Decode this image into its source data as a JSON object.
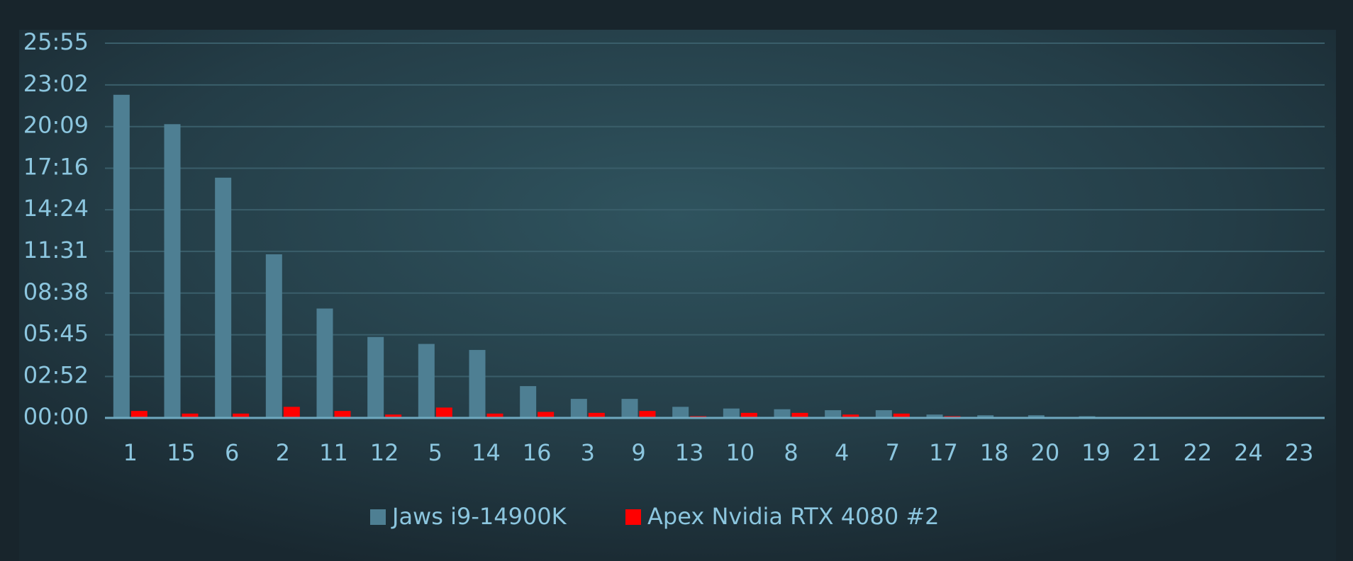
{
  "chart_data": {
    "type": "bar",
    "categories": [
      "1",
      "15",
      "6",
      "2",
      "11",
      "12",
      "5",
      "14",
      "16",
      "3",
      "9",
      "13",
      "10",
      "8",
      "4",
      "7",
      "17",
      "18",
      "20",
      "19",
      "21",
      "22",
      "24",
      "23"
    ],
    "series": [
      {
        "name": "Jaws i9-14900K",
        "color": "#4e7f93",
        "values": [
          1341,
          1219,
          997,
          679,
          454,
          336,
          307,
          282,
          132,
          79,
          79,
          46,
          39,
          36,
          32,
          32,
          14,
          11,
          11,
          7,
          4,
          4,
          4,
          4
        ]
      },
      {
        "name": "Apex Nvidia RTX 4080 #2",
        "color": "#ff0000",
        "values": [
          29,
          18,
          18,
          46,
          29,
          14,
          43,
          18,
          25,
          21,
          29,
          7,
          21,
          21,
          14,
          18,
          7,
          0,
          0,
          4,
          0,
          0,
          0,
          0
        ]
      }
    ],
    "ylim": [
      0,
      1555
    ],
    "yticks": [
      {
        "value": 0,
        "label": "00:00"
      },
      {
        "value": 172,
        "label": "02:52"
      },
      {
        "value": 345,
        "label": "05:45"
      },
      {
        "value": 518,
        "label": "08:38"
      },
      {
        "value": 691,
        "label": "11:31"
      },
      {
        "value": 864,
        "label": "14:24"
      },
      {
        "value": 1036,
        "label": "17:16"
      },
      {
        "value": 1209,
        "label": "20:09"
      },
      {
        "value": 1382,
        "label": "23:02"
      },
      {
        "value": 1555,
        "label": "25:55"
      }
    ],
    "grid": true
  }
}
